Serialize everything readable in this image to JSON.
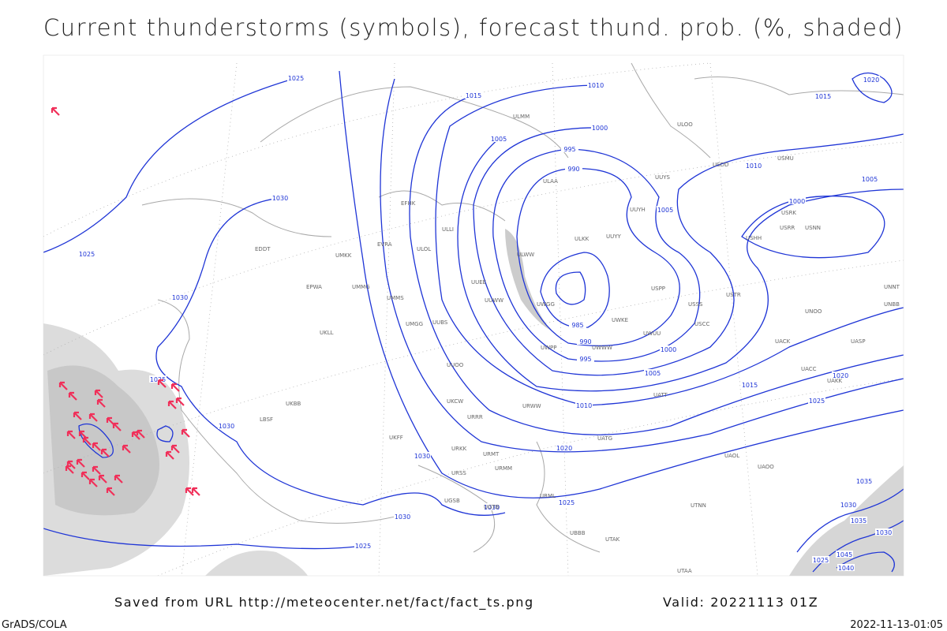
{
  "header": {
    "title": "Current thunderstorms (symbols), forecast thund. prob. (%, shaded)"
  },
  "isobar_labels": [
    "1025",
    "1015",
    "1010",
    "1000",
    "1005",
    "995",
    "990",
    "1005",
    "1005",
    "1000",
    "1010",
    "1015",
    "1020",
    "1030",
    "1025",
    "1030",
    "1025",
    "1030",
    "1030",
    "1030",
    "1030",
    "1025",
    "1025",
    "1020",
    "1010",
    "1015",
    "1020",
    "1025",
    "1005",
    "1000",
    "995",
    "990",
    "985",
    "1035",
    "1030",
    "1035",
    "1030",
    "1045",
    "1040",
    "1025"
  ],
  "stations": [
    "ULMM",
    "ULOO",
    "ULAA",
    "UUYS",
    "USDD",
    "USMU",
    "UUYH",
    "ULKK",
    "UUYY",
    "ULWW",
    "EFHK",
    "ULLI",
    "ULOL",
    "UMKK",
    "EVRA",
    "EDDT",
    "EPWA",
    "UMMG",
    "UMMS",
    "UMGG",
    "UUEE",
    "UUWW",
    "UUBS",
    "UKLL",
    "UUOO",
    "URWW",
    "URRR",
    "UKCW",
    "UKFF",
    "USSS",
    "USCC",
    "USTR",
    "UWUU",
    "UWKE",
    "UWWW",
    "UATT",
    "UATG",
    "UACC",
    "UAKK",
    "UASP",
    "UACK",
    "UNBB",
    "UNNT",
    "USPP",
    "UAOL",
    "UAOO",
    "UTNN",
    "UTAA",
    "UTAK",
    "UBBB",
    "UGTB",
    "UGSB",
    "URML",
    "URMM",
    "URMT",
    "URKK",
    "URSS",
    "UKBB",
    "LBSF",
    "USRR",
    "USNN",
    "USHH",
    "USRK",
    "UWPP",
    "UWGG",
    "UNOO"
  ],
  "footer": {
    "source": "Saved from URL http://meteocenter.net/fact/fact_ts.png",
    "valid": "Valid: 20221113 01Z",
    "credit": "GrADS/COLA",
    "timestamp": "2022-11-13-01:05"
  }
}
